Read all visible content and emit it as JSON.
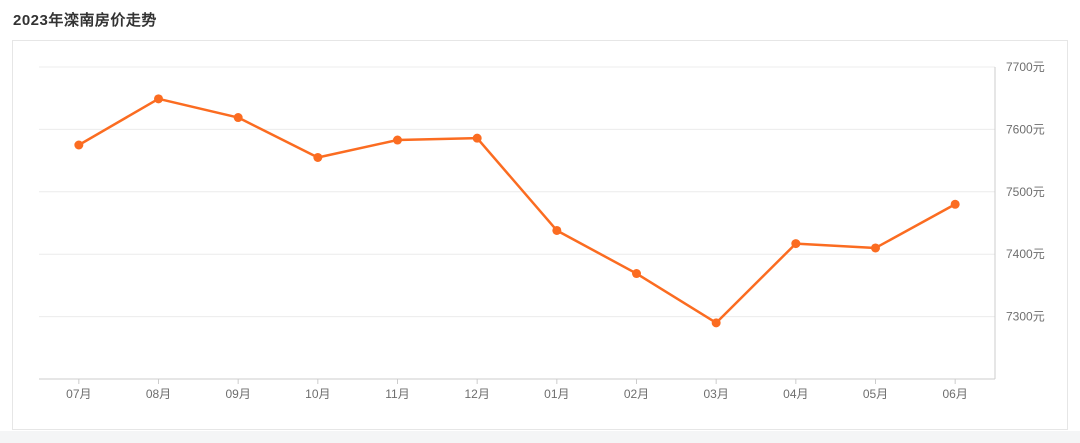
{
  "page": {
    "title": "2023年滦南房价走势"
  },
  "colors": {
    "line": "#fb6c21",
    "point": "#fb6c21",
    "grid": "#ececec",
    "axis": "#cccccc",
    "axis_label": "#6e6e6e",
    "title_text": "#333333",
    "card_border": "#e6e6e6",
    "card_bg": "#ffffff",
    "footer_strip": "#f4f5f6"
  },
  "chart_data": {
    "type": "line",
    "title": "2023年滦南房价走势",
    "categories": [
      "07月",
      "08月",
      "09月",
      "10月",
      "11月",
      "12月",
      "01月",
      "02月",
      "03月",
      "04月",
      "05月",
      "06月"
    ],
    "series": [
      {
        "name": "滦南房价",
        "values": [
          7575,
          7649,
          7619,
          7555,
          7583,
          7586,
          7438,
          7369,
          7290,
          7417,
          7410,
          7480
        ]
      }
    ],
    "unit": "元",
    "y_tick_labels": [
      "7700元",
      "7600元",
      "7500元",
      "7400元",
      "7300元"
    ],
    "y_tick_values": [
      7700,
      7600,
      7500,
      7400,
      7300
    ],
    "ylim": [
      7200,
      7700
    ],
    "xlabel": "",
    "ylabel": "",
    "grid": "horizontal",
    "legend_position": "none",
    "y_axis_side": "right"
  }
}
